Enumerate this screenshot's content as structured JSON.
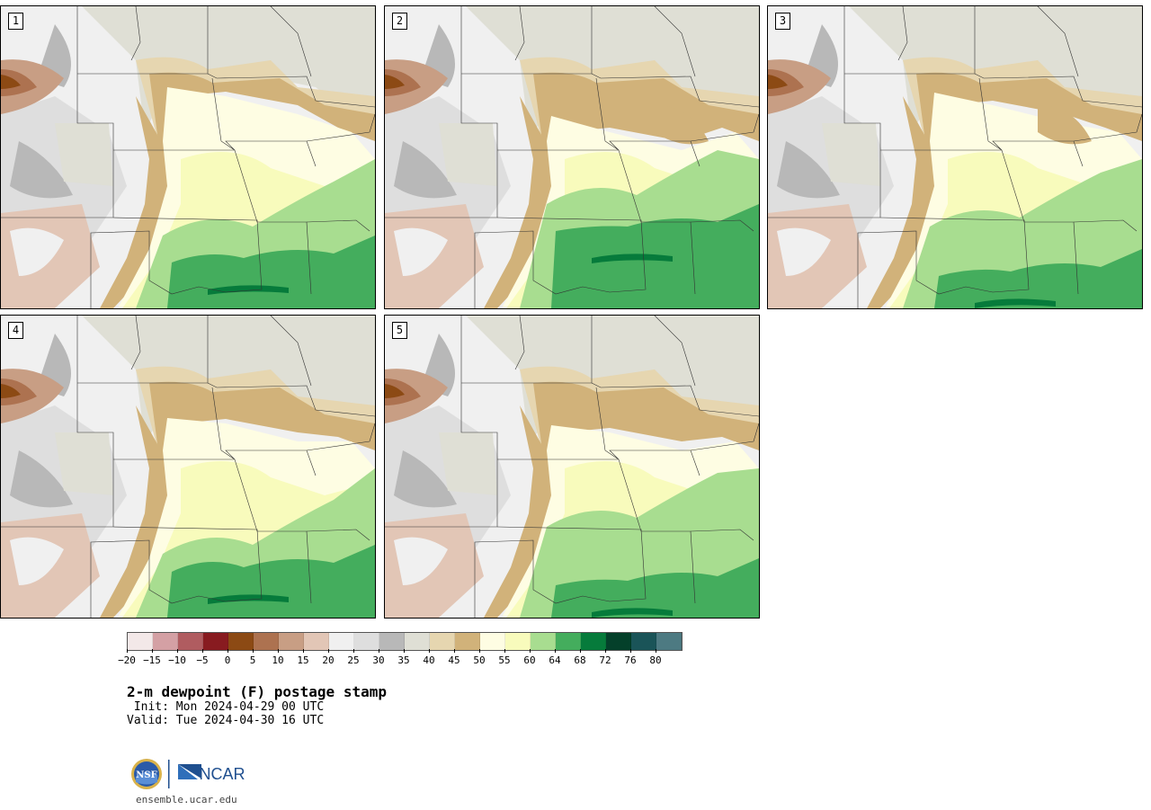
{
  "figure": {
    "title": "2-m dewpoint (F) postage stamp",
    "init": " Init: Mon 2024-04-29 00 UTC",
    "valid": "Valid: Tue 2024-04-30 16 UTC",
    "site": "ensemble.ucar.edu",
    "logo_nsf": "NSF",
    "logo_ncar": "NCAR"
  },
  "panels": [
    {
      "label": "1"
    },
    {
      "label": "2"
    },
    {
      "label": "3"
    },
    {
      "label": "4"
    },
    {
      "label": "5"
    }
  ],
  "colorbar": {
    "ticks": [
      "−20",
      "−15",
      "−10",
      "−5",
      "0",
      "5",
      "10",
      "15",
      "20",
      "25",
      "30",
      "35",
      "40",
      "45",
      "50",
      "55",
      "60",
      "64",
      "68",
      "72",
      "76",
      "80"
    ],
    "colors": [
      "#f3e8e8",
      "#d4a0a4",
      "#b05c60",
      "#881b20",
      "#8c4a14",
      "#ad7250",
      "#c89e84",
      "#e2c6b6",
      "#f0f0f0",
      "#dedede",
      "#b8b8b8",
      "#dfdfd5",
      "#e6d6b0",
      "#d1b27a",
      "#fefde3",
      "#f8fbbc",
      "#a8dd90",
      "#44ad5d",
      "#067b3b",
      "#04402a",
      "#1a5458",
      "#4d7a82"
    ]
  },
  "map_colors": {
    "gray_dry": "#f0f0f0",
    "gray_mid": "#dedede",
    "gray_dark": "#b8b8b8",
    "pale_sage": "#dfdfd5",
    "tan_light": "#e6d6b0",
    "tan": "#d1b27a",
    "pink_brown": "#e2c6b6",
    "brown": "#c89e84",
    "brown_dark": "#ad7250",
    "red_brown": "#8c4a14",
    "cream": "#fefde3",
    "light_yellow": "#f8fbbc",
    "light_green": "#a8dd90",
    "green": "#44ad5d",
    "dark_green": "#067b3b",
    "border": "#333333"
  }
}
